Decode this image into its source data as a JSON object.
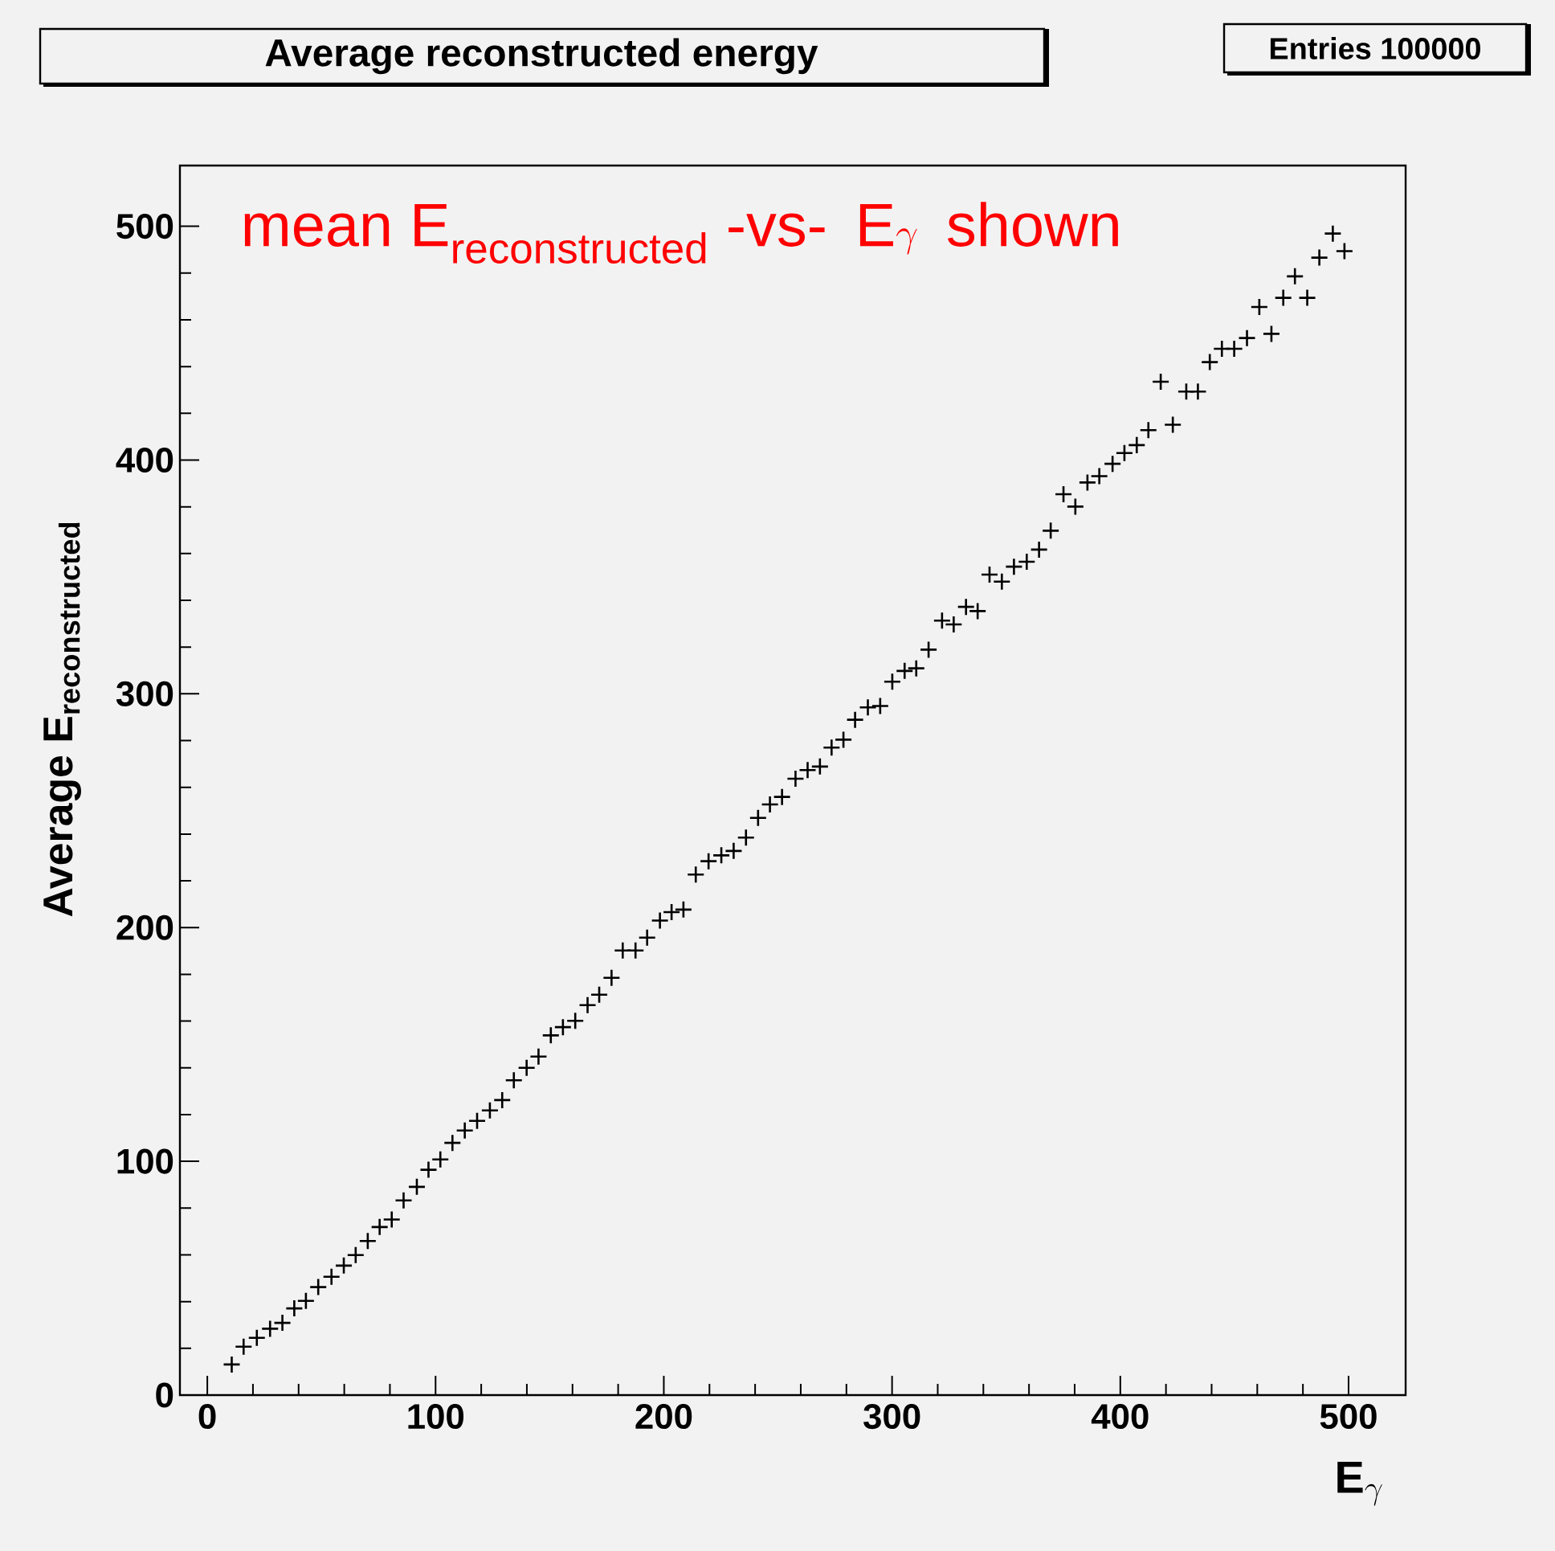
{
  "chart_data": {
    "type": "scatter",
    "title": "Average reconstructed energy",
    "xlabel": "\\mathbf{E}_{\\gamma}",
    "ylabel": "\\mbox{Average }\\mathbf{E}_{\\mathbf{reconstructed}}",
    "annotations": [
      "Entries 100000",
      "\\mbox{mean }\\mathrm{E}_{\\mathrm{reconstructed}}\\mbox{ -vs- }\\;\\mathrm{E}\\gamma\\;\\mbox{ shown}"
    ],
    "xlim": [
      -12,
      525
    ],
    "ylim": [
      0,
      526
    ],
    "xticks": [
      0,
      100,
      200,
      300,
      400,
      500
    ],
    "yticks": [
      0,
      100,
      200,
      300,
      400,
      500
    ],
    "grid": false,
    "marker": "cross",
    "series": [
      {
        "color": "#000000",
        "x": [
          10.7,
          15.9,
          21.7,
          27.5,
          32.9,
          38.1,
          43.2,
          48.6,
          54.4,
          59.8,
          65,
          70.3,
          75.5,
          80.8,
          86,
          91.8,
          96.9,
          102.1,
          107.4,
          112.8,
          118.2,
          123.8,
          129.2,
          134.3,
          139.9,
          145.1,
          150.5,
          155.8,
          161.2,
          166.6,
          171.7,
          177.1,
          182,
          187.6,
          192.7,
          198.3,
          203.4,
          208.6,
          214,
          219.6,
          225.2,
          230.6,
          236,
          241.3,
          246.5,
          251.8,
          257.7,
          263,
          268.4,
          273.5,
          278.7,
          283.8,
          289.4,
          294.8,
          300.1,
          305.5,
          310.6,
          316,
          321.9,
          327,
          332.4,
          337.5,
          342.7,
          348.1,
          353.4,
          359,
          364.4,
          369.5,
          375.1,
          380.3,
          385.6,
          390.8,
          396.6,
          401.8,
          407.2,
          412.3,
          417.7,
          423,
          428.9,
          434,
          439.2,
          444.5,
          449.9,
          455.5,
          460.9,
          466.2,
          471.4,
          476.5,
          481.9,
          487.2,
          493.1,
          498.2
        ],
        "values": [
          13.1,
          20.7,
          24.5,
          28.4,
          30.9,
          37.1,
          40.3,
          46.2,
          50.6,
          55.4,
          59.9,
          65.9,
          71.9,
          75.1,
          83.3,
          89.1,
          96.4,
          100.8,
          107.9,
          113.2,
          117.3,
          121.8,
          126.2,
          134.7,
          140,
          144.8,
          153.9,
          157.4,
          160.1,
          166.8,
          171.3,
          178.5,
          190.2,
          190.2,
          195.7,
          203,
          206.6,
          207.7,
          222.7,
          228.4,
          230.9,
          232.8,
          238.5,
          246.9,
          252.7,
          255.9,
          263.7,
          267.4,
          268.9,
          277,
          280.4,
          288.9,
          294.2,
          294.8,
          305.2,
          309.8,
          310.9,
          318.9,
          331.3,
          329.7,
          337.2,
          335.4,
          351,
          348,
          354.4,
          356.5,
          361.7,
          369.8,
          385.4,
          380.1,
          390.4,
          393.1,
          398.4,
          403,
          406.4,
          412.8,
          433.5,
          415.1,
          429.3,
          429.3,
          441.9,
          447.6,
          447.6,
          452.2,
          465.5,
          454,
          469.4,
          478.6,
          469.4,
          486.6,
          496.9,
          489.4
        ]
      }
    ]
  }
}
